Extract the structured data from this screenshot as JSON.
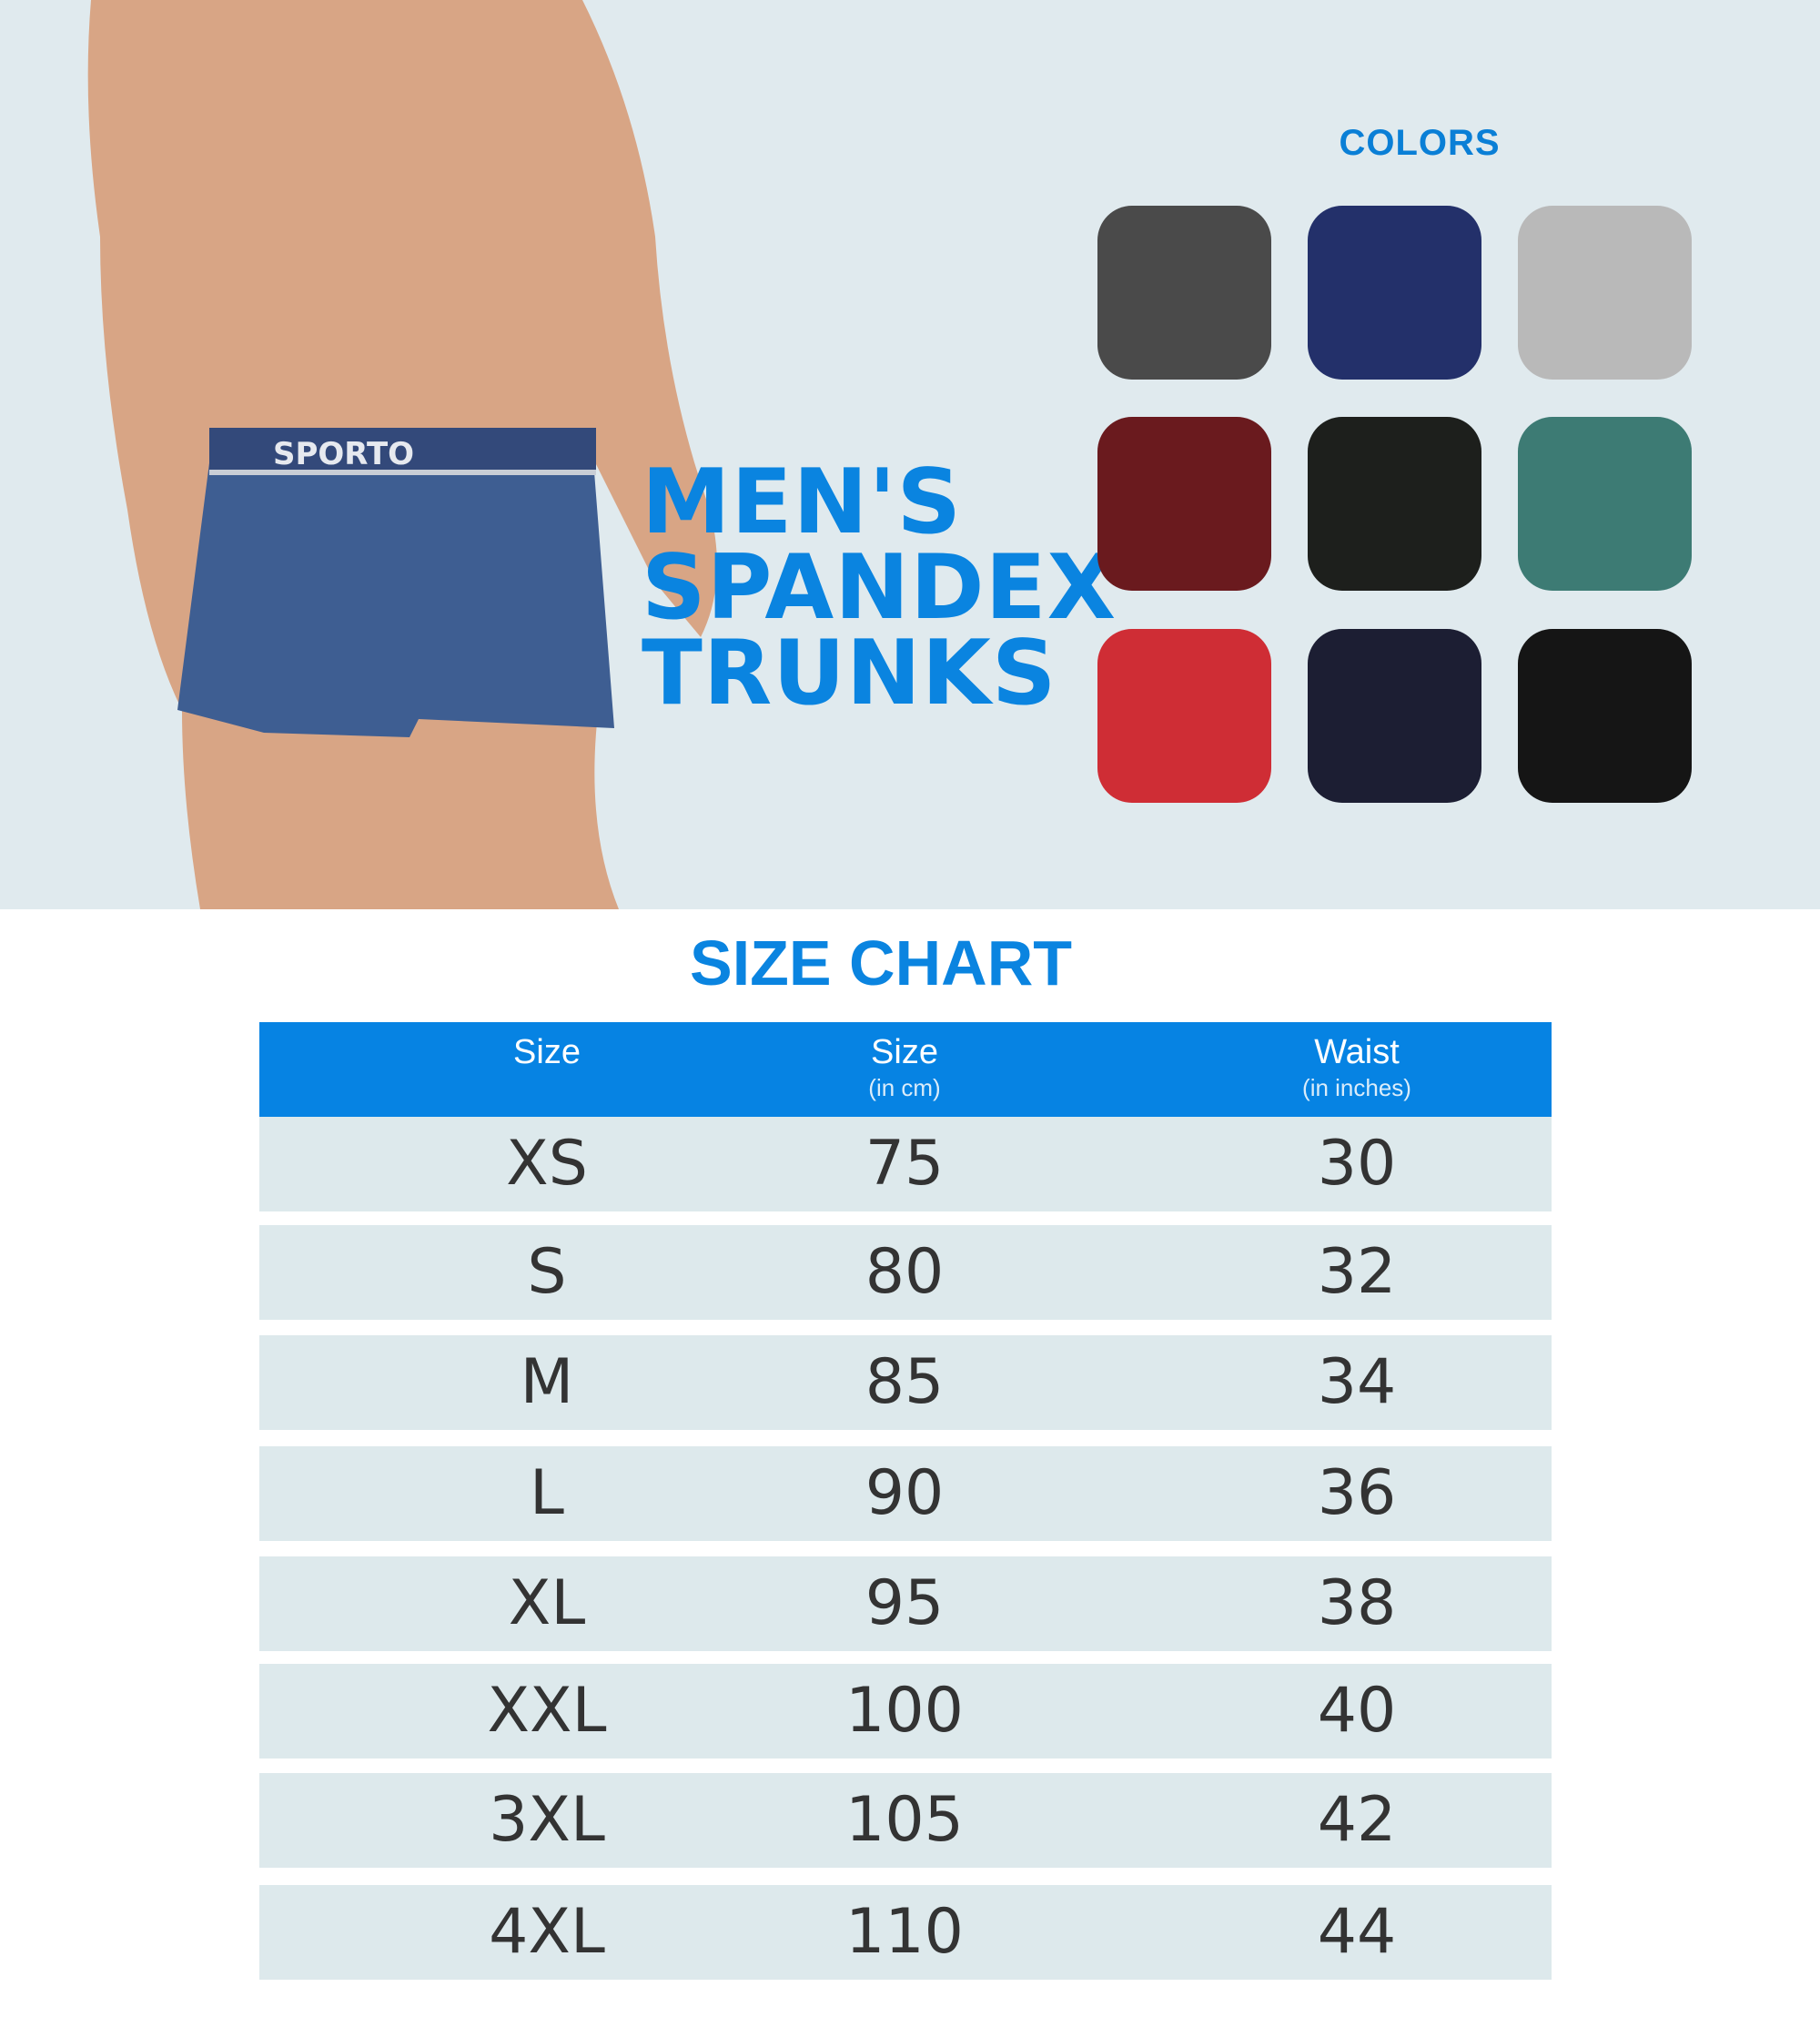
{
  "brand_logo": "SPORTO",
  "title_lines": [
    "MEN'S",
    "SPANDEX",
    "TRUNKS"
  ],
  "colors_heading": "COLORS",
  "swatches": [
    "#4a4a4a",
    "#23306a",
    "#b9b9b9",
    "#6a1a1e",
    "#1d1f1c",
    "#3d7b74",
    "#cf2d35",
    "#1c1e33",
    "#151515"
  ],
  "size_chart": {
    "heading": "SIZE CHART",
    "header_color": "#0683e3",
    "headers": [
      {
        "label": "Size",
        "sub": ""
      },
      {
        "label": "Size",
        "sub": "(in cm)"
      },
      {
        "label": "Waist",
        "sub": "(in inches)"
      }
    ],
    "rows": [
      [
        "XS",
        "75",
        "30"
      ],
      [
        "S",
        "80",
        "32"
      ],
      [
        "M",
        "85",
        "34"
      ],
      [
        "L",
        "90",
        "36"
      ],
      [
        "XL",
        "95",
        "38"
      ],
      [
        "XXL",
        "100",
        "40"
      ],
      [
        "3XL",
        "105",
        "42"
      ],
      [
        "4XL",
        "110",
        "44"
      ]
    ]
  }
}
